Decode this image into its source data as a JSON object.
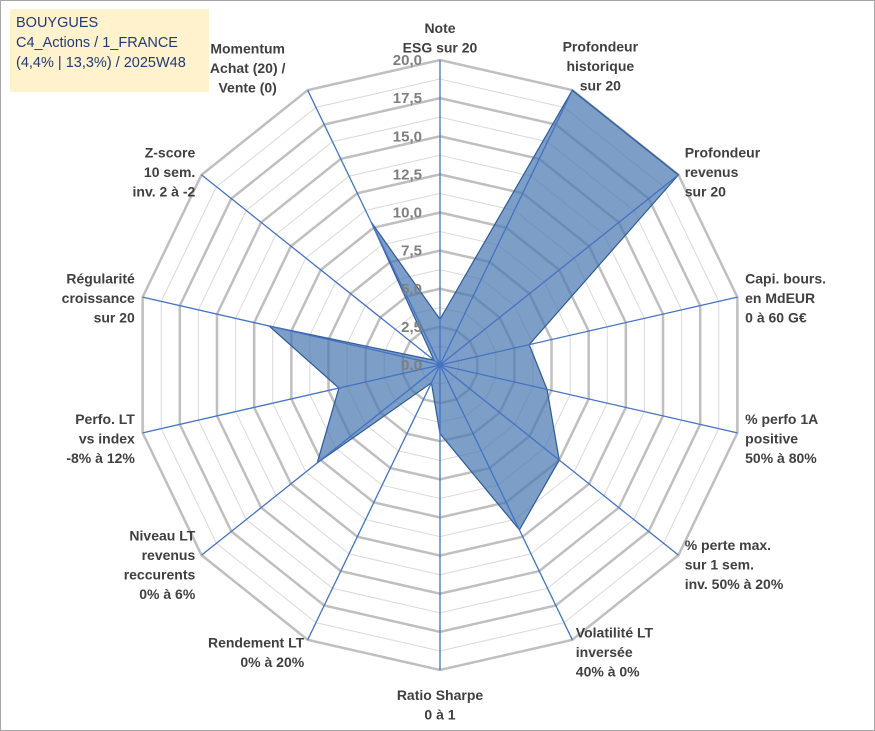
{
  "header": {
    "lines": [
      "BOUYGUES",
      "C4_Actions / 1_FRANCE",
      "(4,4% | 13,3%) / 2025W48"
    ]
  },
  "chart_data": {
    "type": "radar",
    "title": "",
    "rmin": 0,
    "rmax": 20,
    "ticks": [
      "0,0",
      "2,5",
      "5,0",
      "7,5",
      "10,0",
      "12,5",
      "15,0",
      "17,5",
      "20,0"
    ],
    "axes": [
      {
        "label": [
          "Note",
          "ESG sur 20"
        ]
      },
      {
        "label": [
          "Profondeur",
          "historique",
          "sur 20"
        ]
      },
      {
        "label": [
          "Profondeur",
          "revenus",
          "sur 20"
        ]
      },
      {
        "label": [
          "Capi. bours.",
          "en MdEUR",
          "0 à 60 G€"
        ]
      },
      {
        "label": [
          "% perfo 1A",
          "positive",
          "50% à 80%"
        ]
      },
      {
        "label": [
          "% perte max.",
          "sur 1 sem.",
          "inv. 50% à 20%"
        ]
      },
      {
        "label": [
          "Volatilité LT",
          "inversée",
          "40% à 0%"
        ]
      },
      {
        "label": [
          "Ratio Sharpe",
          "0 à 1"
        ]
      },
      {
        "label": [
          "Rendement LT",
          "0% à 20%"
        ]
      },
      {
        "label": [
          "Niveau LT",
          "revenus",
          "reccurents",
          "0% à 6%"
        ]
      },
      {
        "label": [
          "Perfo. LT",
          "vs index",
          "-8% à 12%"
        ]
      },
      {
        "label": [
          "Régularité",
          "croissance",
          "sur 20"
        ]
      },
      {
        "label": [
          "Z-score",
          "10 sem.",
          "inv. 2 à -2"
        ]
      },
      {
        "label": [
          "Momentum",
          "Achat (20) /",
          "Vente (0)"
        ]
      }
    ],
    "series": [
      {
        "values": [
          3.0,
          20.0,
          20.0,
          6.0,
          7.2,
          10.0,
          12.0,
          4.5,
          1.3,
          10.3,
          6.8,
          11.5,
          0.5,
          10.4
        ]
      }
    ],
    "grid": true,
    "colors": {
      "fill": "#4a78b2",
      "stroke": "#2e5a9a",
      "axis": "#4472c4",
      "grid_outer": "#bfbfbf",
      "grid_inner": "#d9d9d9"
    }
  }
}
